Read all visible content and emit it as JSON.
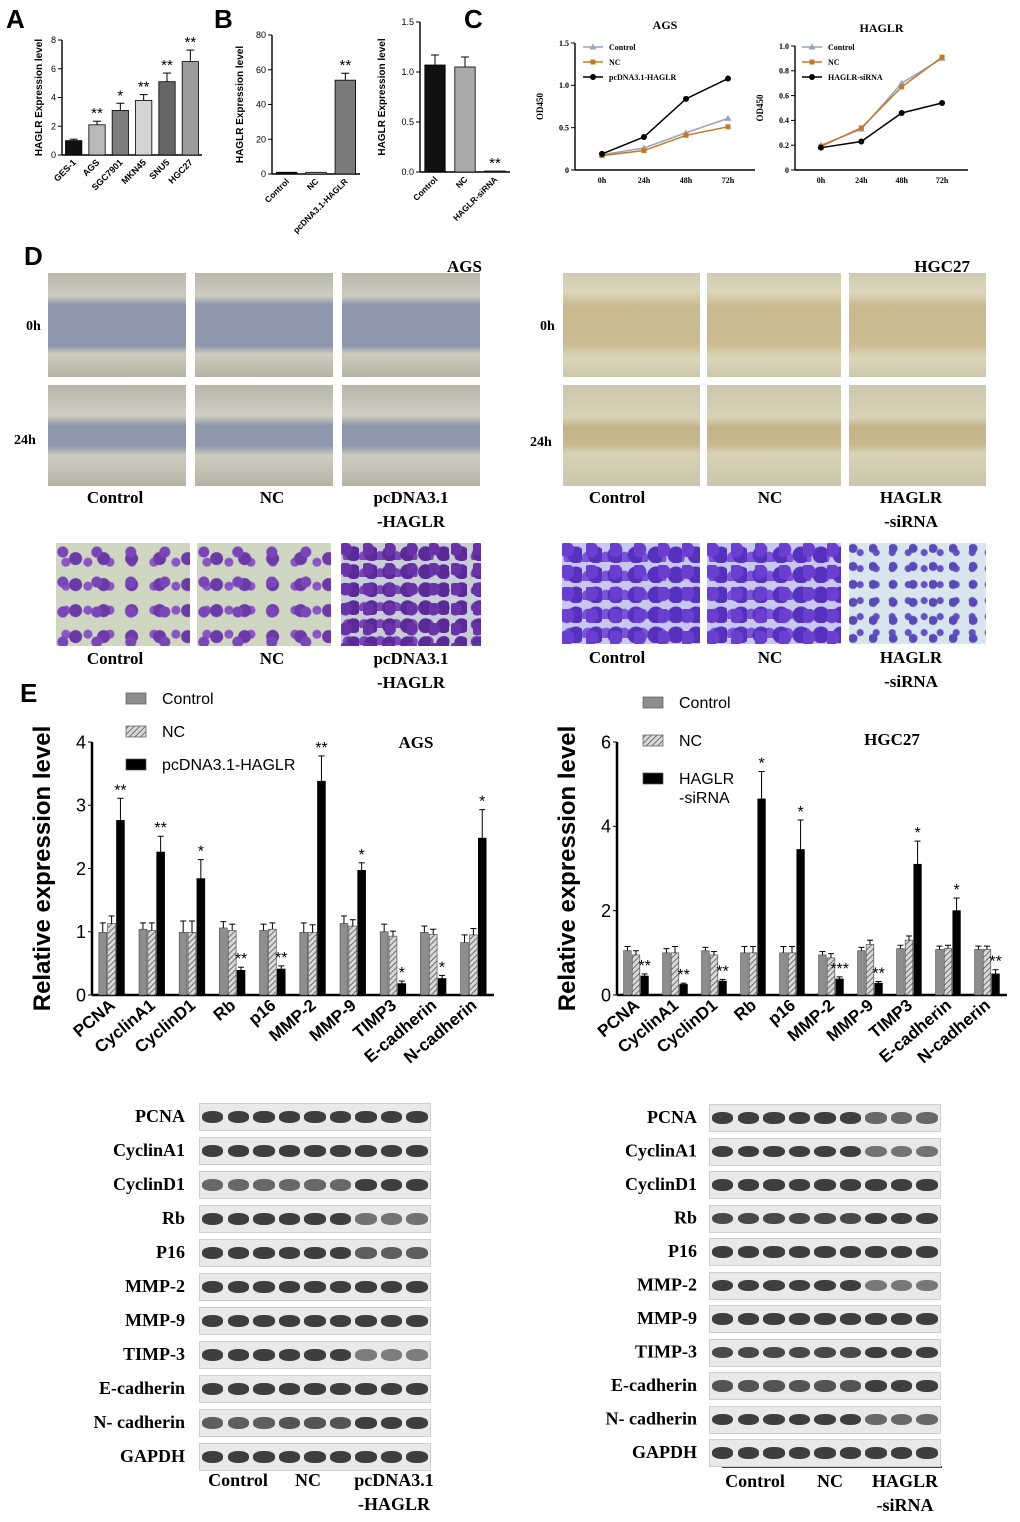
{
  "panel_letters": {
    "A": "A",
    "B": "B",
    "C": "C",
    "D": "D",
    "E": "E"
  },
  "chart_data": [
    {
      "id": "A",
      "type": "bar",
      "ylabel": "HAGLR Expression level",
      "ylim": [
        0,
        8
      ],
      "yticks": [
        "0",
        "2",
        "4",
        "6",
        "8"
      ],
      "categories": [
        "GES-1",
        "AGS",
        "SGC7901",
        "MKN45",
        "SNU5",
        "HGC27"
      ],
      "values": [
        1.0,
        2.1,
        3.1,
        3.8,
        5.1,
        6.5
      ],
      "errors": [
        0.1,
        0.25,
        0.5,
        0.4,
        0.6,
        0.8
      ],
      "significance": [
        "",
        "**",
        "*",
        "**",
        "**",
        "**"
      ],
      "colors": [
        "#111111",
        "#b9b9b9",
        "#7d7d7d",
        "#d3d3d3",
        "#666666",
        "#9c9c9c"
      ]
    },
    {
      "id": "B1",
      "type": "bar",
      "ylabel": "HAGLR Expression level",
      "ylim": [
        0,
        80
      ],
      "yticks": [
        "0",
        "20",
        "40",
        "60",
        "80"
      ],
      "categories": [
        "Control",
        "NC",
        "pcDNA3.1-HAGLR"
      ],
      "values": [
        1,
        1,
        54
      ],
      "errors": [
        0,
        0,
        4
      ],
      "significance": [
        "",
        "",
        "**"
      ],
      "colors": [
        "#111111",
        "#aaaaaa",
        "#7a7a7a"
      ]
    },
    {
      "id": "B2",
      "type": "bar",
      "ylabel": "HAGLR Expression level",
      "ylim": [
        0,
        1.5
      ],
      "yticks": [
        "0.0",
        "0.5",
        "1.0",
        "1.5"
      ],
      "categories": [
        "Control",
        "NC",
        "HAGLR-siRNA"
      ],
      "values": [
        1.07,
        1.05,
        0.01
      ],
      "errors": [
        0.1,
        0.1,
        0
      ],
      "significance": [
        "",
        "",
        "**"
      ],
      "colors": [
        "#111111",
        "#aaaaaa",
        "#7a7a7a"
      ]
    },
    {
      "id": "C1",
      "type": "line",
      "title": "AGS",
      "ylabel": "OD450",
      "ylim": [
        0,
        1.5
      ],
      "yticks": [
        "0",
        "0.5",
        "1.0",
        "1.5"
      ],
      "x": [
        "0h",
        "24h",
        "48h",
        "72h"
      ],
      "series": [
        {
          "name": "Control",
          "values": [
            0.18,
            0.26,
            0.44,
            0.61
          ],
          "color": "#9aa3b8",
          "marker": "triangle"
        },
        {
          "name": "NC",
          "values": [
            0.17,
            0.23,
            0.41,
            0.51
          ],
          "color": "#c07a2a",
          "marker": "square"
        },
        {
          "name": "pcDNA3.1-HAGLR",
          "values": [
            0.19,
            0.39,
            0.84,
            1.08
          ],
          "color": "#000000",
          "marker": "circle"
        }
      ]
    },
    {
      "id": "C2",
      "type": "line",
      "title": "HAGLR",
      "ylabel": "OD450",
      "ylim": [
        0,
        1.0
      ],
      "yticks": [
        "0",
        "0.2",
        "0.4",
        "0.6",
        "0.8",
        "1.0"
      ],
      "x": [
        "0h",
        "24h",
        "48h",
        "72h"
      ],
      "series": [
        {
          "name": "Control",
          "values": [
            0.2,
            0.33,
            0.7,
            0.9
          ],
          "color": "#9aa3b8",
          "marker": "triangle"
        },
        {
          "name": "NC",
          "values": [
            0.19,
            0.34,
            0.67,
            0.91
          ],
          "color": "#c07a2a",
          "marker": "square"
        },
        {
          "name": "HAGLR-siRNA",
          "values": [
            0.18,
            0.23,
            0.46,
            0.54
          ],
          "color": "#000000",
          "marker": "circle"
        }
      ]
    },
    {
      "id": "E1",
      "type": "bar",
      "title": "AGS",
      "ylabel": "Relative expression level",
      "ylim": [
        0,
        4
      ],
      "yticks": [
        "0",
        "1",
        "2",
        "3",
        "4"
      ],
      "categories": [
        "PCNA",
        "CyclinA1",
        "CyclinD1",
        "Rb",
        "p16",
        "MMP-2",
        "MMP-9",
        "TIMP3",
        "E-cadherin",
        "N-cadherin"
      ],
      "series": [
        {
          "name": "Control",
          "values": [
            0.99,
            1.04,
            0.99,
            1.06,
            1.02,
            0.99,
            1.13,
            1.0,
            0.99,
            0.83
          ],
          "errors": [
            0.15,
            0.1,
            0.18,
            0.1,
            0.1,
            0.15,
            0.12,
            0.12,
            0.1,
            0.12
          ]
        },
        {
          "name": "NC",
          "values": [
            1.13,
            1.02,
            0.99,
            1.02,
            1.04,
            0.99,
            1.09,
            0.93,
            0.96,
            0.95
          ],
          "errors": [
            0.12,
            0.12,
            0.18,
            0.1,
            0.1,
            0.12,
            0.1,
            0.08,
            0.08,
            0.1
          ]
        },
        {
          "name": "pcDNA3.1-HAGLR",
          "values": [
            2.76,
            2.26,
            1.84,
            0.39,
            0.41,
            3.38,
            1.97,
            0.18,
            0.26,
            2.48
          ],
          "errors": [
            0.35,
            0.25,
            0.3,
            0.05,
            0.05,
            0.4,
            0.12,
            0.04,
            0.05,
            0.45
          ]
        }
      ],
      "significance": [
        "**",
        "**",
        "*",
        "**",
        "**",
        "**",
        "*",
        "*",
        "*",
        "*"
      ]
    },
    {
      "id": "E2",
      "type": "bar",
      "title": "HGC27",
      "ylabel": "Relative expression level",
      "ylim": [
        0,
        6
      ],
      "yticks": [
        "0",
        "2",
        "4",
        "6"
      ],
      "categories": [
        "PCNA",
        "CyclinA1",
        "CyclinD1",
        "Rb",
        "p16",
        "MMP-2",
        "MMP-9",
        "TIMP3",
        "E-cadherin",
        "N-cadherin"
      ],
      "series": [
        {
          "name": "Control",
          "values": [
            1.05,
            1.0,
            1.05,
            1.0,
            1.0,
            0.95,
            1.05,
            1.1,
            1.08,
            1.08
          ],
          "errors": [
            0.1,
            0.1,
            0.08,
            0.15,
            0.15,
            0.08,
            0.08,
            0.08,
            0.08,
            0.08
          ]
        },
        {
          "name": "NC",
          "values": [
            0.95,
            1.0,
            0.95,
            1.0,
            1.0,
            0.88,
            1.2,
            1.3,
            1.1,
            1.08
          ],
          "errors": [
            0.1,
            0.15,
            0.08,
            0.15,
            0.15,
            0.1,
            0.1,
            0.1,
            0.08,
            0.08
          ]
        },
        {
          "name": "HAGLR\n-siRNA",
          "values": [
            0.45,
            0.25,
            0.33,
            4.65,
            3.45,
            0.38,
            0.28,
            3.1,
            2.0,
            0.5
          ],
          "errors": [
            0.05,
            0.03,
            0.04,
            0.65,
            0.7,
            0.05,
            0.04,
            0.55,
            0.3,
            0.1
          ]
        }
      ],
      "significance": [
        "**",
        "**",
        "**",
        "*",
        "*",
        "***",
        "**",
        "*",
        "*",
        "**"
      ]
    }
  ],
  "panel_d": {
    "left_title": "AGS",
    "right_title": "HGC27",
    "time_labels": [
      "0h",
      "24h"
    ],
    "left_groups": [
      "Control",
      "NC",
      "pcDNA3.1\n-HAGLR"
    ],
    "right_groups": [
      "Control",
      "NC",
      "HAGLR\n-siRNA"
    ]
  },
  "western_blots": {
    "left_labels": [
      "PCNA",
      "CyclinA1",
      "CyclinD1",
      "Rb",
      "P16",
      "MMP-2",
      "MMP-9",
      "TIMP-3",
      "E-cadherin",
      "N- cadherin",
      "GAPDH"
    ],
    "right_labels": [
      "PCNA",
      "CyclinA1",
      "CyclinD1",
      "Rb",
      "P16",
      "MMP-2",
      "MMP-9",
      "TIMP-3",
      "E-cadherin",
      "N- cadherin",
      "GAPDH"
    ],
    "left_groups": [
      "Control",
      "NC",
      "pcDNA3.1\n-HAGLR"
    ],
    "right_groups": [
      "Control",
      "NC",
      "HAGLR\n-siRNA"
    ]
  }
}
